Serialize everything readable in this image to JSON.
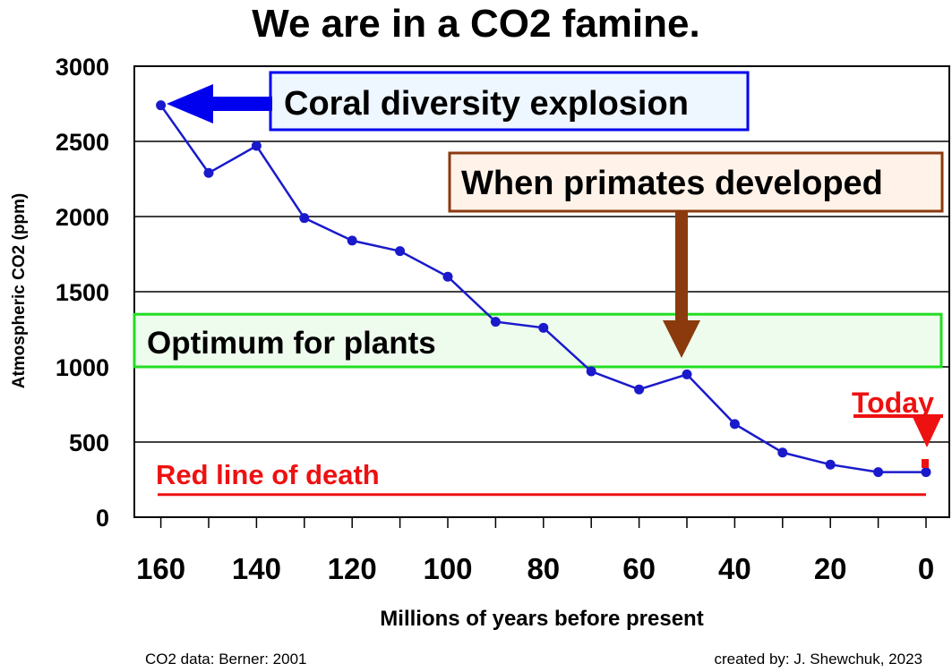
{
  "chart_data": {
    "type": "line",
    "title": "We are in a CO2 famine.",
    "xlabel": "Millions of years before present",
    "ylabel": "Atmospheric CO2 (ppm)",
    "xlim": [
      165,
      0
    ],
    "ylim": [
      0,
      3000
    ],
    "x_ticks": [
      160,
      140,
      120,
      100,
      80,
      60,
      40,
      20,
      0
    ],
    "y_ticks": [
      0,
      500,
      1000,
      1500,
      2000,
      2500,
      3000
    ],
    "grid": "horizontal",
    "series": [
      {
        "color": "#1a1acc",
        "x": [
          160,
          150,
          140,
          130,
          120,
          110,
          100,
          90,
          80,
          70,
          60,
          50,
          40,
          30,
          20,
          10,
          0
        ],
        "values": [
          2740,
          2290,
          2470,
          1990,
          1840,
          1770,
          1600,
          1300,
          1260,
          970,
          850,
          950,
          620,
          430,
          350,
          300,
          300
        ]
      }
    ],
    "annotations": {
      "coral": {
        "text": "Coral diversity explosion",
        "at_x": 160,
        "color": "#0000ee",
        "fill": "#eef6ff"
      },
      "primates": {
        "text": "When primates developed",
        "at_x": 50,
        "color": "#8b3a0e",
        "fill": "#fff2e8"
      },
      "optimum": {
        "text": "Optimum for plants",
        "y_range": [
          1000,
          1350
        ],
        "color": "#22dd22",
        "fill": "#e8fbe8"
      },
      "today": {
        "text": "Today",
        "at_x": 0,
        "color": "#ee1111"
      },
      "death": {
        "text": "Red line of death",
        "y": 150,
        "color": "#ee1111"
      }
    }
  },
  "credits": {
    "left": "CO2 data: Berner: 2001",
    "right": "created by: J. Shewchuk, 2023"
  }
}
